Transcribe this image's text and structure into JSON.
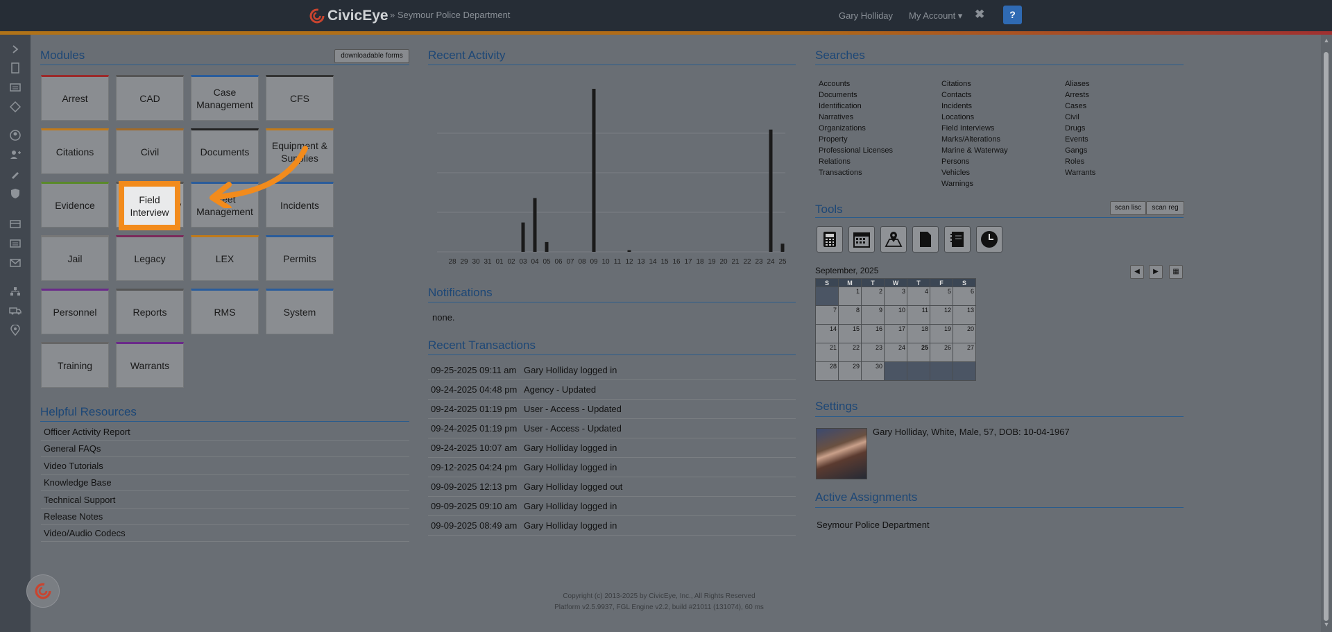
{
  "header": {
    "brand": "CivicEye",
    "department": "» Seymour Police Department",
    "user": "Gary Holliday",
    "account_menu": "My Account ▾",
    "close": "✖",
    "help": "?"
  },
  "sidebar": {
    "icons": [
      "chevron-right-icon",
      "document-icon",
      "list-icon",
      "warning-icon",
      "person-icon",
      "add-person-icon",
      "pen-icon",
      "shield-icon",
      "card-icon",
      "list-alt-icon",
      "mail-icon",
      "org-chart-icon",
      "truck-icon",
      "map-pin-icon"
    ]
  },
  "modules": {
    "title": "Modules",
    "downloadable_forms": "downloadable forms",
    "tiles": [
      {
        "label": "Arrest",
        "color": "#9b2a2a"
      },
      {
        "label": "CAD",
        "color": "#555555"
      },
      {
        "label": "Case Management",
        "color": "#2a5c9b"
      },
      {
        "label": "CFS",
        "color": "#333333"
      },
      {
        "label": "Citations",
        "color": "#c07a1a"
      },
      {
        "label": "Civil",
        "color": "#a06a2a"
      },
      {
        "label": "Documents",
        "color": "#222222"
      },
      {
        "label": "Equipment & Supplies",
        "color": "#c07a1a"
      },
      {
        "label": "Evidence",
        "color": "#5a8a2a"
      },
      {
        "label": "Field Interview",
        "color": "#555555"
      },
      {
        "label": "Fleet Management",
        "color": "#2a5c9b"
      },
      {
        "label": "Incidents",
        "color": "#2a5c9b"
      },
      {
        "label": "Jail",
        "color": "#777777"
      },
      {
        "label": "Legacy",
        "color": "#7a2a5a"
      },
      {
        "label": "LEX",
        "color": "#c07a1a"
      },
      {
        "label": "Permits",
        "color": "#2a5c9b"
      },
      {
        "label": "Personnel",
        "color": "#6a2a8a"
      },
      {
        "label": "Reports",
        "color": "#555555"
      },
      {
        "label": "RMS",
        "color": "#2a5c9b"
      },
      {
        "label": "System",
        "color": "#2a5c9b"
      },
      {
        "label": "Training",
        "color": "#666666"
      },
      {
        "label": "Warrants",
        "color": "#6a2a8a"
      }
    ]
  },
  "helpful_resources": {
    "title": "Helpful Resources",
    "items": [
      "Officer Activity Report",
      "General FAQs",
      "Video Tutorials",
      "Knowledge Base",
      "Technical Support",
      "Release Notes",
      "Video/Audio Codecs"
    ]
  },
  "recent_activity": {
    "title": "Recent Activity",
    "chart_data": {
      "type": "bar",
      "categories": [
        "28",
        "29",
        "30",
        "31",
        "01",
        "02",
        "03",
        "04",
        "05",
        "06",
        "07",
        "08",
        "09",
        "10",
        "11",
        "12",
        "13",
        "14",
        "15",
        "16",
        "17",
        "18",
        "19",
        "20",
        "21",
        "22",
        "23",
        "24",
        "25"
      ],
      "values": [
        0,
        0,
        0,
        0,
        0,
        0,
        18,
        33,
        6,
        0,
        0,
        0,
        100,
        0,
        0,
        1,
        0,
        0,
        0,
        0,
        0,
        0,
        0,
        0,
        0,
        0,
        0,
        75,
        5
      ],
      "ylim": [
        0,
        100
      ]
    }
  },
  "notifications": {
    "title": "Notifications",
    "text": "none."
  },
  "recent_transactions": {
    "title": "Recent Transactions",
    "rows": [
      {
        "date": "09-25-2025 09:11 am",
        "text": "Gary Holliday logged in"
      },
      {
        "date": "09-24-2025 04:48 pm",
        "text": "Agency - Updated"
      },
      {
        "date": "09-24-2025 01:19 pm",
        "text": "User - Access - Updated"
      },
      {
        "date": "09-24-2025 01:19 pm",
        "text": "User - Access - Updated"
      },
      {
        "date": "09-24-2025 10:07 am",
        "text": "Gary Holliday logged in"
      },
      {
        "date": "09-12-2025 04:24 pm",
        "text": "Gary Holliday logged in"
      },
      {
        "date": "09-09-2025 12:13 pm",
        "text": "Gary Holliday logged out"
      },
      {
        "date": "09-09-2025 09:10 am",
        "text": "Gary Holliday logged in"
      },
      {
        "date": "09-09-2025 08:49 am",
        "text": "Gary Holliday logged in"
      }
    ]
  },
  "searches": {
    "title": "Searches",
    "col1": [
      "Accounts",
      "Documents",
      "Identification",
      "Narratives",
      "Organizations",
      "Property",
      "Professional Licenses",
      "Relations",
      "Transactions"
    ],
    "col2": [
      "Citations",
      "Contacts",
      "Incidents",
      "Locations",
      "Field Interviews",
      "Marks/Alterations",
      "Marine & Waterway",
      "Persons",
      "Vehicles",
      "Warnings"
    ],
    "col3": [
      "Aliases",
      "Arrests",
      "Cases",
      "Civil",
      "Drugs",
      "Events",
      "Gangs",
      "Roles",
      "Warrants"
    ]
  },
  "tools": {
    "title": "Tools",
    "scan_lisc": "scan lisc",
    "scan_reg": "scan reg",
    "icons": [
      "calculator-icon",
      "calendar-icon",
      "map-icon",
      "document-icon",
      "ledger-icon",
      "clock-icon"
    ]
  },
  "calendar": {
    "month": "September, 2025",
    "weekdays": [
      "S",
      "M",
      "T",
      "W",
      "T",
      "F",
      "S"
    ],
    "weeks": [
      [
        "",
        "1",
        "2",
        "3",
        "4",
        "5",
        "6"
      ],
      [
        "7",
        "8",
        "9",
        "10",
        "11",
        "12",
        "13"
      ],
      [
        "14",
        "15",
        "16",
        "17",
        "18",
        "19",
        "20"
      ],
      [
        "21",
        "22",
        "23",
        "24",
        "25",
        "26",
        "27"
      ],
      [
        "28",
        "29",
        "30",
        "",
        "",
        "",
        ""
      ]
    ],
    "today": "25"
  },
  "settings": {
    "title": "Settings",
    "profile": "Gary Holliday, White, Male, 57, DOB: 10-04-1967"
  },
  "active_assignments": {
    "title": "Active Assignments",
    "item": "Seymour Police Department"
  },
  "footer": {
    "copyright": "Copyright (c) 2013-2025 by CivicEye, Inc., All Rights Reserved",
    "platform": "Platform v2.5.9937, FGL Engine v2.2, build #21011 (131074), 60 ms"
  },
  "colors": {
    "accent_orange": "#f28b1c",
    "heading_blue": "#1d4776",
    "topbar": "#262d36"
  }
}
